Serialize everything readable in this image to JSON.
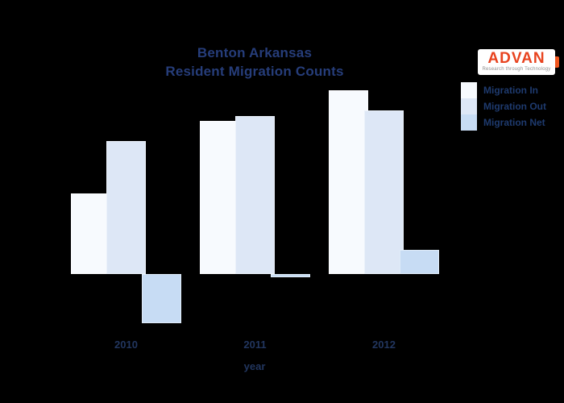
{
  "title": {
    "line1": "Benton Arkansas",
    "line2": "Resident Migration Counts"
  },
  "logo": {
    "brand": "ADVAN",
    "tagline": "Research through Technology",
    "brand_color": "#e8431f"
  },
  "legend": {
    "position": "top-right",
    "items": [
      {
        "label": "Migration In",
        "color": "#f7fafe"
      },
      {
        "label": "Migration Out",
        "color": "#dde7f6"
      },
      {
        "label": "Migration Net",
        "color": "#c7dcf4"
      }
    ]
  },
  "x_axis": {
    "label": "year",
    "ticks": [
      "2010",
      "2011",
      "2012"
    ]
  },
  "chart_data": {
    "type": "bar",
    "title": "Benton Arkansas Resident Migration Counts",
    "categories": [
      "2010",
      "2011",
      "2012"
    ],
    "series": [
      {
        "name": "Migration In",
        "color": "#f7fafe",
        "values": [
          100,
          190,
          228
        ]
      },
      {
        "name": "Migration Out",
        "color": "#dde7f6",
        "values": [
          165,
          196,
          203
        ]
      },
      {
        "name": "Migration Net",
        "color": "#c7dcf4",
        "values": [
          -61,
          -4,
          30
        ]
      }
    ],
    "xlabel": "year",
    "ylabel": "",
    "legend_position": "top-right",
    "grid": false,
    "axes_visible": false,
    "ylim": [
      -70,
      235
    ],
    "note": "No y-axis, gridlines, or value labels are visible in the chart; values are estimated relative bar heights (pixels) around a zero baseline. Net = In - Out (negative in 2010, ~0 in 2011, positive in 2012)."
  },
  "colors": {
    "background": "#000000",
    "title_text": "#263d7a",
    "tick_text": "#22365f",
    "legend_text": "#1e3a6e"
  }
}
